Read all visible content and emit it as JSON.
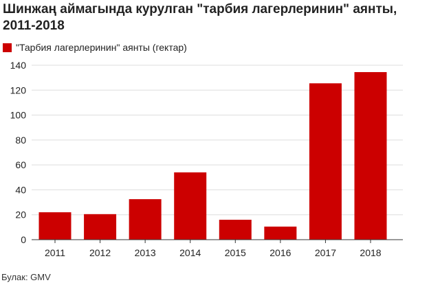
{
  "chart_data": {
    "type": "bar",
    "title": "Шинжаң аймагында курулган \"тарбия лагерлеринин\" аянты, 2011-2018",
    "xlabel": "",
    "ylabel": "",
    "categories": [
      "2011",
      "2012",
      "2013",
      "2014",
      "2015",
      "2016",
      "2017",
      "2018"
    ],
    "series": [
      {
        "name": "\"Тарбия лагерлеринин\" аянты (гектар)",
        "values": [
          22,
          20.5,
          32.5,
          54,
          16,
          10.5,
          125.5,
          134.5
        ],
        "color": "#cc0000"
      }
    ],
    "ylim": [
      0,
      140
    ],
    "yticks": [
      0,
      20,
      40,
      60,
      80,
      100,
      120,
      140
    ],
    "grid": true,
    "legend": "top-left"
  },
  "source": "Булак: GMV",
  "colors": {
    "bar": "#cc0000",
    "grid": "#dddddd",
    "axis": "#333333",
    "text": "#222222"
  }
}
